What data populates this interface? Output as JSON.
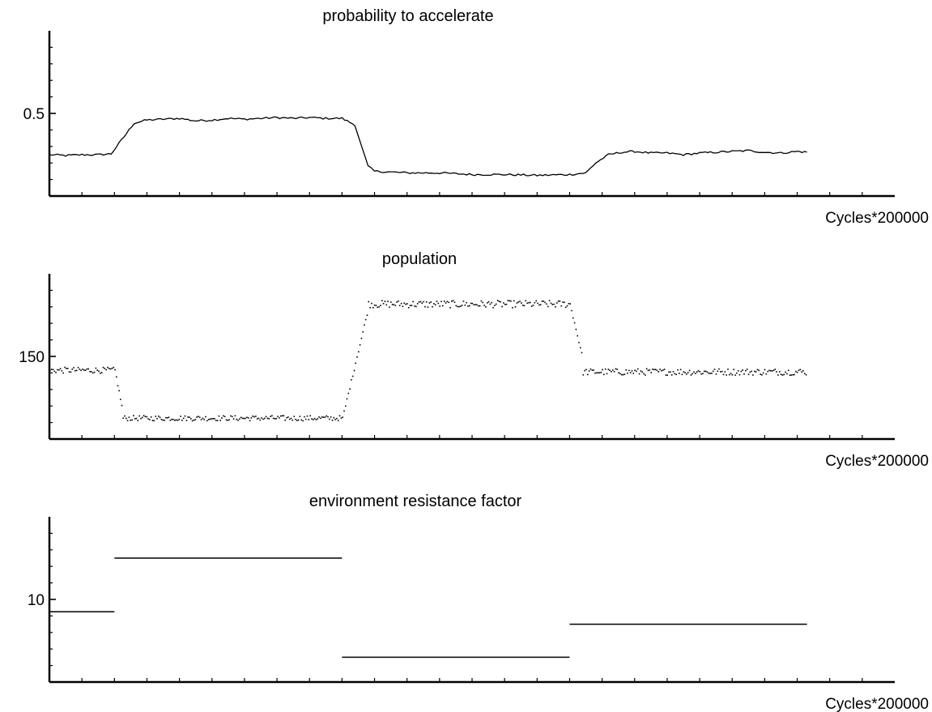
{
  "chart_data": [
    {
      "type": "line",
      "title": "probability to accelerate",
      "xlabel": "Cycles*200000",
      "ylabel": "",
      "xlim": [
        0,
        26
      ],
      "ylim": [
        0.0,
        1.0
      ],
      "ytick_labels": [
        {
          "value": 0.5,
          "label": "0.5"
        }
      ],
      "grid": false,
      "style": "line",
      "series": [
        {
          "x": [
            0,
            0.5,
            1,
            1.5,
            1.9,
            2.3,
            2.6,
            3.0,
            3.5,
            4.0,
            4.5,
            5.0,
            5.5,
            6.0,
            6.5,
            7.0,
            7.5,
            8.0,
            8.5,
            9.0,
            9.4,
            9.6,
            9.8,
            10.0,
            10.5,
            11.0,
            12.0,
            13.0,
            14.0,
            15.0,
            16.0,
            16.5,
            16.8,
            17.2,
            17.6,
            18.0,
            18.5,
            19.0,
            19.5,
            20.0,
            20.5,
            21.0,
            21.5,
            22.0,
            22.5,
            23.0,
            23.3
          ],
          "y": [
            0.25,
            0.245,
            0.25,
            0.25,
            0.255,
            0.36,
            0.44,
            0.46,
            0.465,
            0.47,
            0.455,
            0.46,
            0.47,
            0.465,
            0.47,
            0.475,
            0.47,
            0.475,
            0.47,
            0.47,
            0.43,
            0.3,
            0.18,
            0.15,
            0.145,
            0.14,
            0.14,
            0.13,
            0.13,
            0.125,
            0.13,
            0.14,
            0.2,
            0.25,
            0.265,
            0.27,
            0.26,
            0.26,
            0.25,
            0.26,
            0.265,
            0.27,
            0.275,
            0.265,
            0.26,
            0.27,
            0.265
          ]
        }
      ]
    },
    {
      "type": "scatter",
      "title": "population",
      "xlabel": "Cycles*200000",
      "ylabel": "",
      "xlim": [
        0,
        26
      ],
      "ylim": [
        100,
        200
      ],
      "ytick_labels": [
        {
          "value": 150,
          "label": "150"
        }
      ],
      "grid": false,
      "style": "dots",
      "segments": [
        {
          "x_start": 0,
          "x_end": 2.0,
          "level": 142,
          "noise": 1.8
        },
        {
          "x_start": 2.0,
          "x_end": 2.25,
          "ramp_from": 142,
          "ramp_to": 116
        },
        {
          "x_start": 2.25,
          "x_end": 9.0,
          "level": 113,
          "noise": 1.6
        },
        {
          "x_start": 9.0,
          "x_end": 9.8,
          "ramp_from": 113,
          "ramp_to": 180
        },
        {
          "x_start": 9.8,
          "x_end": 16.0,
          "level": 182,
          "noise": 2.2
        },
        {
          "x_start": 16.0,
          "x_end": 16.4,
          "ramp_from": 182,
          "ramp_to": 148
        },
        {
          "x_start": 16.4,
          "x_end": 23.3,
          "level": 141,
          "noise": 2.0
        }
      ]
    },
    {
      "type": "line",
      "title": "environment resistance factor",
      "xlabel": "Cycles*200000",
      "ylabel": "",
      "xlim": [
        0,
        26
      ],
      "ylim": [
        0,
        20
      ],
      "ytick_labels": [
        {
          "value": 10,
          "label": "10"
        }
      ],
      "grid": false,
      "style": "steps",
      "steps": [
        {
          "x_start": 0,
          "x_end": 2.0,
          "y": 8.5
        },
        {
          "x_start": 2.0,
          "x_end": 9.0,
          "y": 15
        },
        {
          "x_start": 9.0,
          "x_end": 16.0,
          "y": 3
        },
        {
          "x_start": 16.0,
          "x_end": 23.3,
          "y": 7
        }
      ]
    }
  ]
}
